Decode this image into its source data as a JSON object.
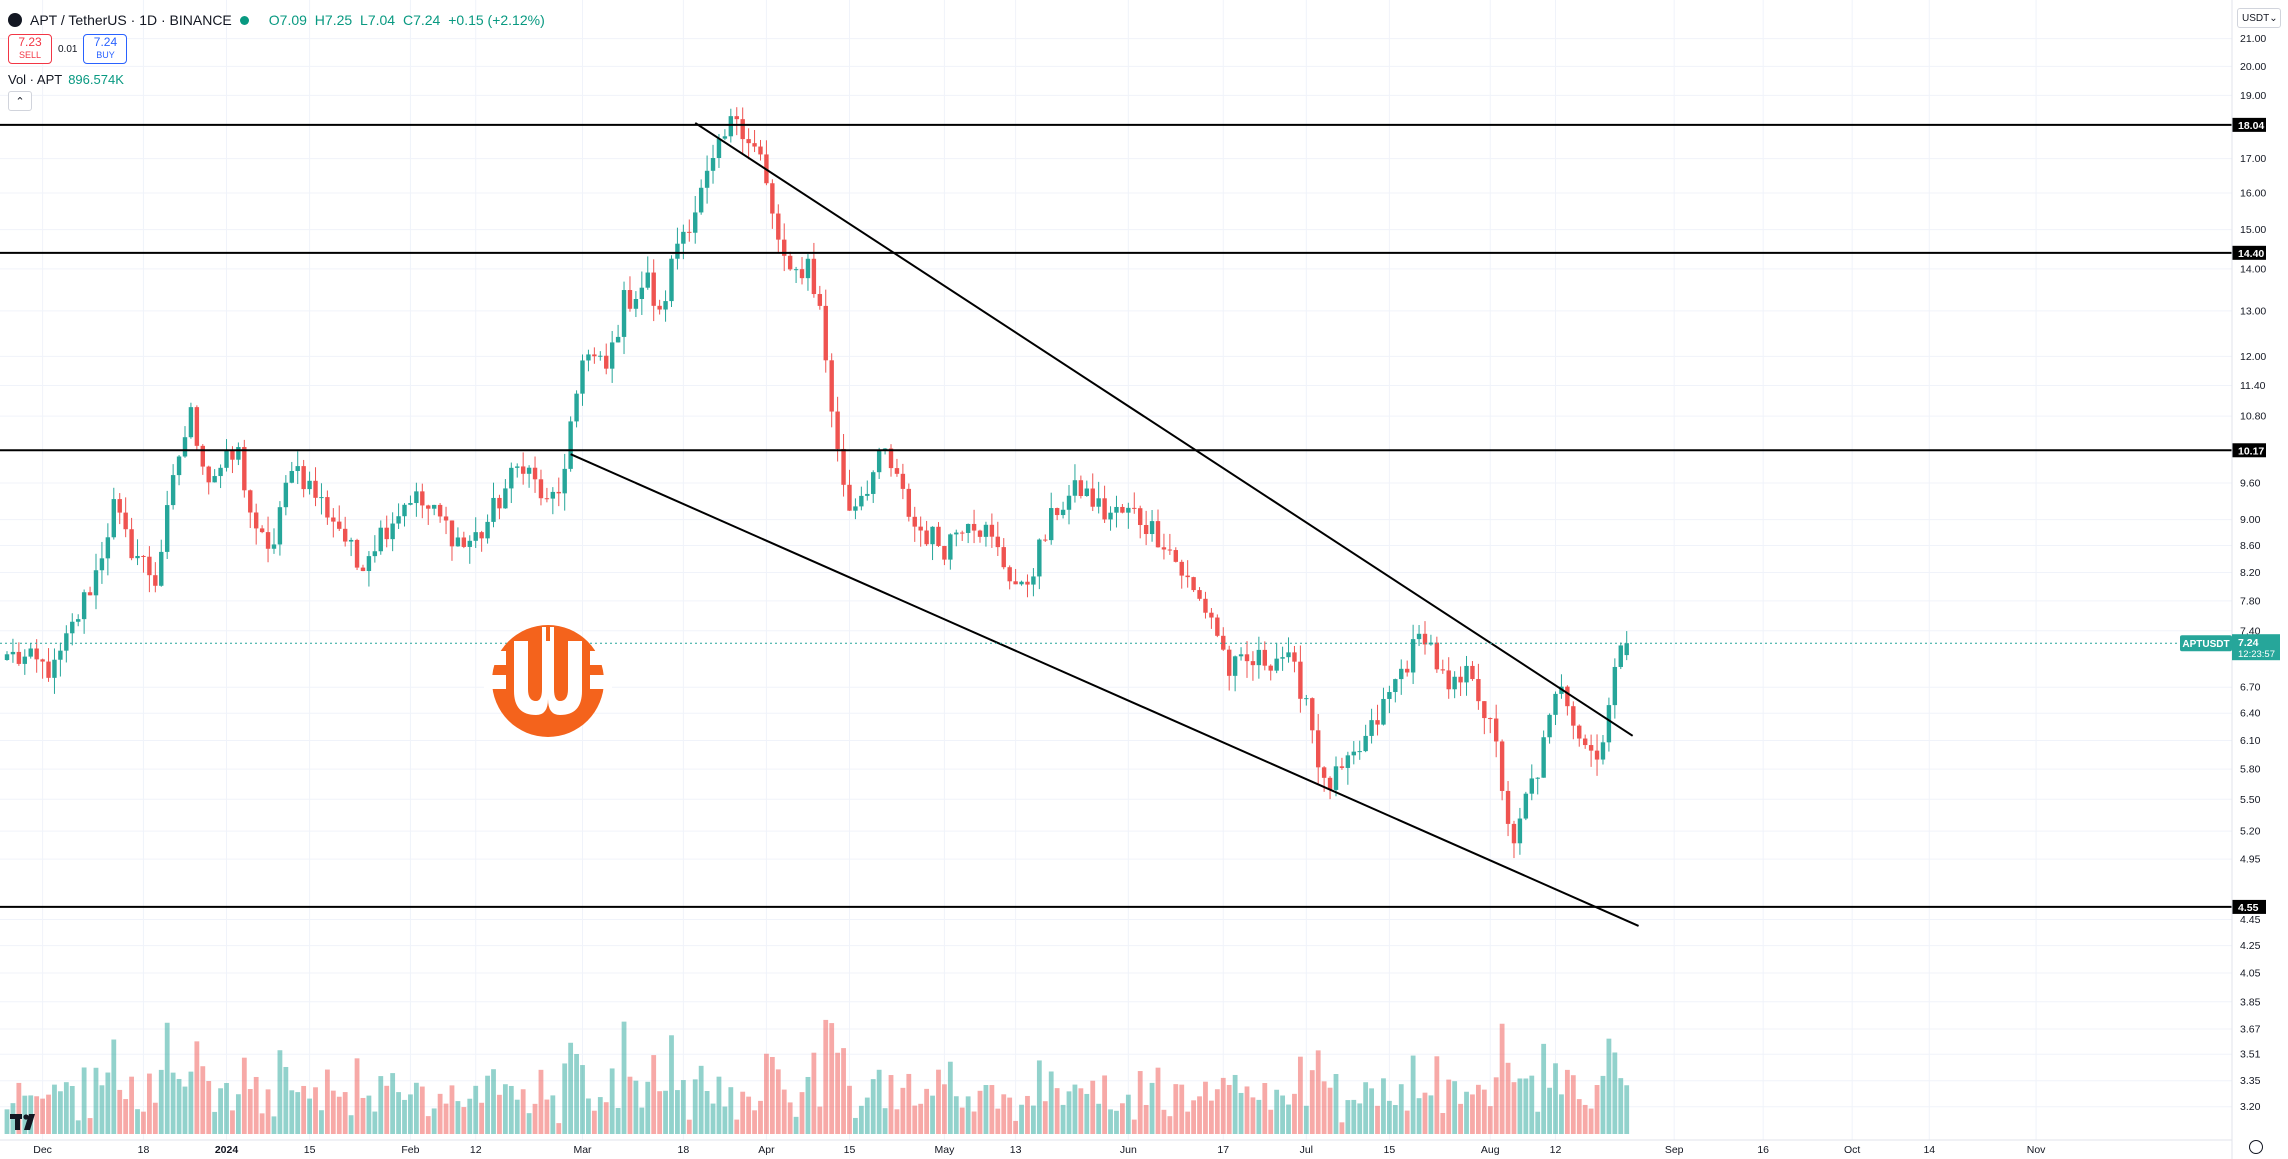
{
  "header": {
    "symbol": "APT",
    "quote": "TetherUS",
    "interval": "1D",
    "exchange": "BINANCE",
    "title": "APT / TetherUS · 1D · BINANCE",
    "open": "O7.09",
    "high": "H7.25",
    "low": "L7.04",
    "close": "C7.24",
    "change": "+0.15 (+2.12%)"
  },
  "trade": {
    "sell_price": "7.23",
    "sell_label": "SELL",
    "spread": "0.01",
    "buy_price": "7.24",
    "buy_label": "BUY"
  },
  "volume": {
    "label": "Vol · APT",
    "value": "896.574K"
  },
  "currency_selector": "USDT",
  "collapse_icon": "chevron-up-icon",
  "colors": {
    "up": "#26a69a",
    "down": "#ef5350",
    "up_text": "#089981",
    "line": "#000000",
    "grid": "#f0f3fa"
  },
  "chart_data": {
    "type": "candlestick",
    "price_scale": {
      "type": "log",
      "ylim": [
        3.05,
        21.7
      ],
      "tick_labels": [
        "21.00",
        "20.00",
        "19.00",
        "17.00",
        "16.00",
        "15.00",
        "14.00",
        "13.00",
        "12.00",
        "11.40",
        "10.80",
        "9.60",
        "9.00",
        "8.60",
        "8.20",
        "7.80",
        "7.40",
        "6.70",
        "6.40",
        "6.10",
        "5.80",
        "5.50",
        "5.20",
        "4.95",
        "4.45",
        "4.25",
        "4.05",
        "3.85",
        "3.67",
        "3.51",
        "3.35",
        "3.20"
      ],
      "tick_values": [
        21.0,
        20.0,
        19.0,
        17.0,
        16.0,
        15.0,
        14.0,
        13.0,
        12.0,
        11.4,
        10.8,
        9.6,
        9.0,
        8.6,
        8.2,
        7.8,
        7.4,
        6.7,
        6.4,
        6.1,
        5.8,
        5.5,
        5.2,
        4.95,
        4.45,
        4.25,
        4.05,
        3.85,
        3.67,
        3.51,
        3.35,
        3.2
      ]
    },
    "time_scale": {
      "start": "2023-11-25",
      "end": "2024-11-24",
      "tick_labels": [
        "Dec",
        "18",
        "2024",
        "15",
        "Feb",
        "12",
        "Mar",
        "18",
        "Apr",
        "15",
        "May",
        "13",
        "Jun",
        "17",
        "Jul",
        "15",
        "Aug",
        "12",
        "Sep",
        "16",
        "Oct",
        "14",
        "Nov"
      ],
      "tick_dates": [
        "2023-12-01",
        "2023-12-18",
        "2024-01-01",
        "2024-01-15",
        "2024-02-01",
        "2024-02-12",
        "2024-03-01",
        "2024-03-18",
        "2024-04-01",
        "2024-04-15",
        "2024-05-01",
        "2024-05-13",
        "2024-06-01",
        "2024-06-17",
        "2024-07-01",
        "2024-07-15",
        "2024-08-01",
        "2024-08-12",
        "2024-09-01",
        "2024-09-16",
        "2024-10-01",
        "2024-10-14",
        "2024-11-01"
      ]
    },
    "horizontal_levels": [
      {
        "label": "18.04",
        "value": 18.04
      },
      {
        "label": "14.40",
        "value": 14.4
      },
      {
        "label": "10.17",
        "value": 10.17
      },
      {
        "label": "4.55",
        "value": 4.55
      }
    ],
    "trendlines": [
      {
        "name": "upper",
        "p1": {
          "date": "2024-03-20",
          "price": 18.1
        },
        "p2": {
          "date": "2024-08-25",
          "price": 6.15
        }
      },
      {
        "name": "lower",
        "p1": {
          "date": "2024-02-28",
          "price": 10.1
        },
        "p2": {
          "date": "2024-08-26",
          "price": 4.4
        }
      }
    ],
    "last_price": {
      "ticker": "APTUSDT",
      "price": "7.24",
      "countdown": "12:23:57",
      "value": 7.24
    },
    "close_anchors": [
      [
        "2023-11-25",
        7.1
      ],
      [
        "2023-12-03",
        6.9
      ],
      [
        "2023-12-10",
        8.2
      ],
      [
        "2023-12-13",
        9.2
      ],
      [
        "2023-12-15",
        8.7
      ],
      [
        "2023-12-20",
        8.1
      ],
      [
        "2023-12-24",
        10.1
      ],
      [
        "2023-12-26",
        10.8
      ],
      [
        "2023-12-29",
        9.7
      ],
      [
        "2024-01-03",
        10.1
      ],
      [
        "2024-01-06",
        8.7
      ],
      [
        "2024-01-09",
        8.6
      ],
      [
        "2024-01-12",
        10.0
      ],
      [
        "2024-01-16",
        9.4
      ],
      [
        "2024-01-20",
        8.9
      ],
      [
        "2024-01-23",
        8.3
      ],
      [
        "2024-01-27",
        8.8
      ],
      [
        "2024-02-01",
        9.4
      ],
      [
        "2024-02-06",
        9.0
      ],
      [
        "2024-02-10",
        8.6
      ],
      [
        "2024-02-13",
        8.8
      ],
      [
        "2024-02-17",
        9.5
      ],
      [
        "2024-02-20",
        10.0
      ],
      [
        "2024-02-24",
        9.2
      ],
      [
        "2024-02-27",
        9.7
      ],
      [
        "2024-03-01",
        12.1
      ],
      [
        "2024-03-05",
        11.7
      ],
      [
        "2024-03-08",
        13.2
      ],
      [
        "2024-03-12",
        13.7
      ],
      [
        "2024-03-14",
        12.8
      ],
      [
        "2024-03-17",
        14.7
      ],
      [
        "2024-03-20",
        15.6
      ],
      [
        "2024-03-25",
        17.6
      ],
      [
        "2024-03-27",
        18.4
      ],
      [
        "2024-03-31",
        17.0
      ],
      [
        "2024-04-02",
        15.3
      ],
      [
        "2024-04-05",
        13.7
      ],
      [
        "2024-04-08",
        14.2
      ],
      [
        "2024-04-10",
        13.0
      ],
      [
        "2024-04-13",
        10.1
      ],
      [
        "2024-04-15",
        9.2
      ],
      [
        "2024-04-18",
        9.6
      ],
      [
        "2024-04-21",
        10.1
      ],
      [
        "2024-04-23",
        9.6
      ],
      [
        "2024-04-26",
        8.9
      ],
      [
        "2024-05-01",
        8.6
      ],
      [
        "2024-05-05",
        9.1
      ],
      [
        "2024-05-08",
        8.8
      ],
      [
        "2024-05-14",
        7.9
      ],
      [
        "2024-05-20",
        9.2
      ],
      [
        "2024-05-24",
        9.5
      ],
      [
        "2024-05-28",
        9.1
      ],
      [
        "2024-06-02",
        9.1
      ],
      [
        "2024-06-07",
        8.7
      ],
      [
        "2024-06-12",
        7.9
      ],
      [
        "2024-06-15",
        7.6
      ],
      [
        "2024-06-18",
        6.9
      ],
      [
        "2024-06-22",
        7.0
      ],
      [
        "2024-06-27",
        7.1
      ],
      [
        "2024-07-01",
        6.6
      ],
      [
        "2024-07-04",
        5.6
      ],
      [
        "2024-07-08",
        5.8
      ],
      [
        "2024-07-12",
        6.2
      ],
      [
        "2024-07-17",
        6.9
      ],
      [
        "2024-07-21",
        7.4
      ],
      [
        "2024-07-25",
        6.6
      ],
      [
        "2024-07-29",
        6.9
      ],
      [
        "2024-08-02",
        6.0
      ],
      [
        "2024-08-05",
        5.0
      ],
      [
        "2024-08-07",
        5.5
      ],
      [
        "2024-08-09",
        5.8
      ],
      [
        "2024-08-13",
        6.8
      ],
      [
        "2024-08-16",
        6.2
      ],
      [
        "2024-08-19",
        5.9
      ],
      [
        "2024-08-22",
        6.9
      ],
      [
        "2024-08-24",
        7.24
      ]
    ],
    "volume_notes": "Volume bars per day at the bottom of the chart, colored green on up days and red on down days; spikes in early March and late March, mid April and early August."
  }
}
